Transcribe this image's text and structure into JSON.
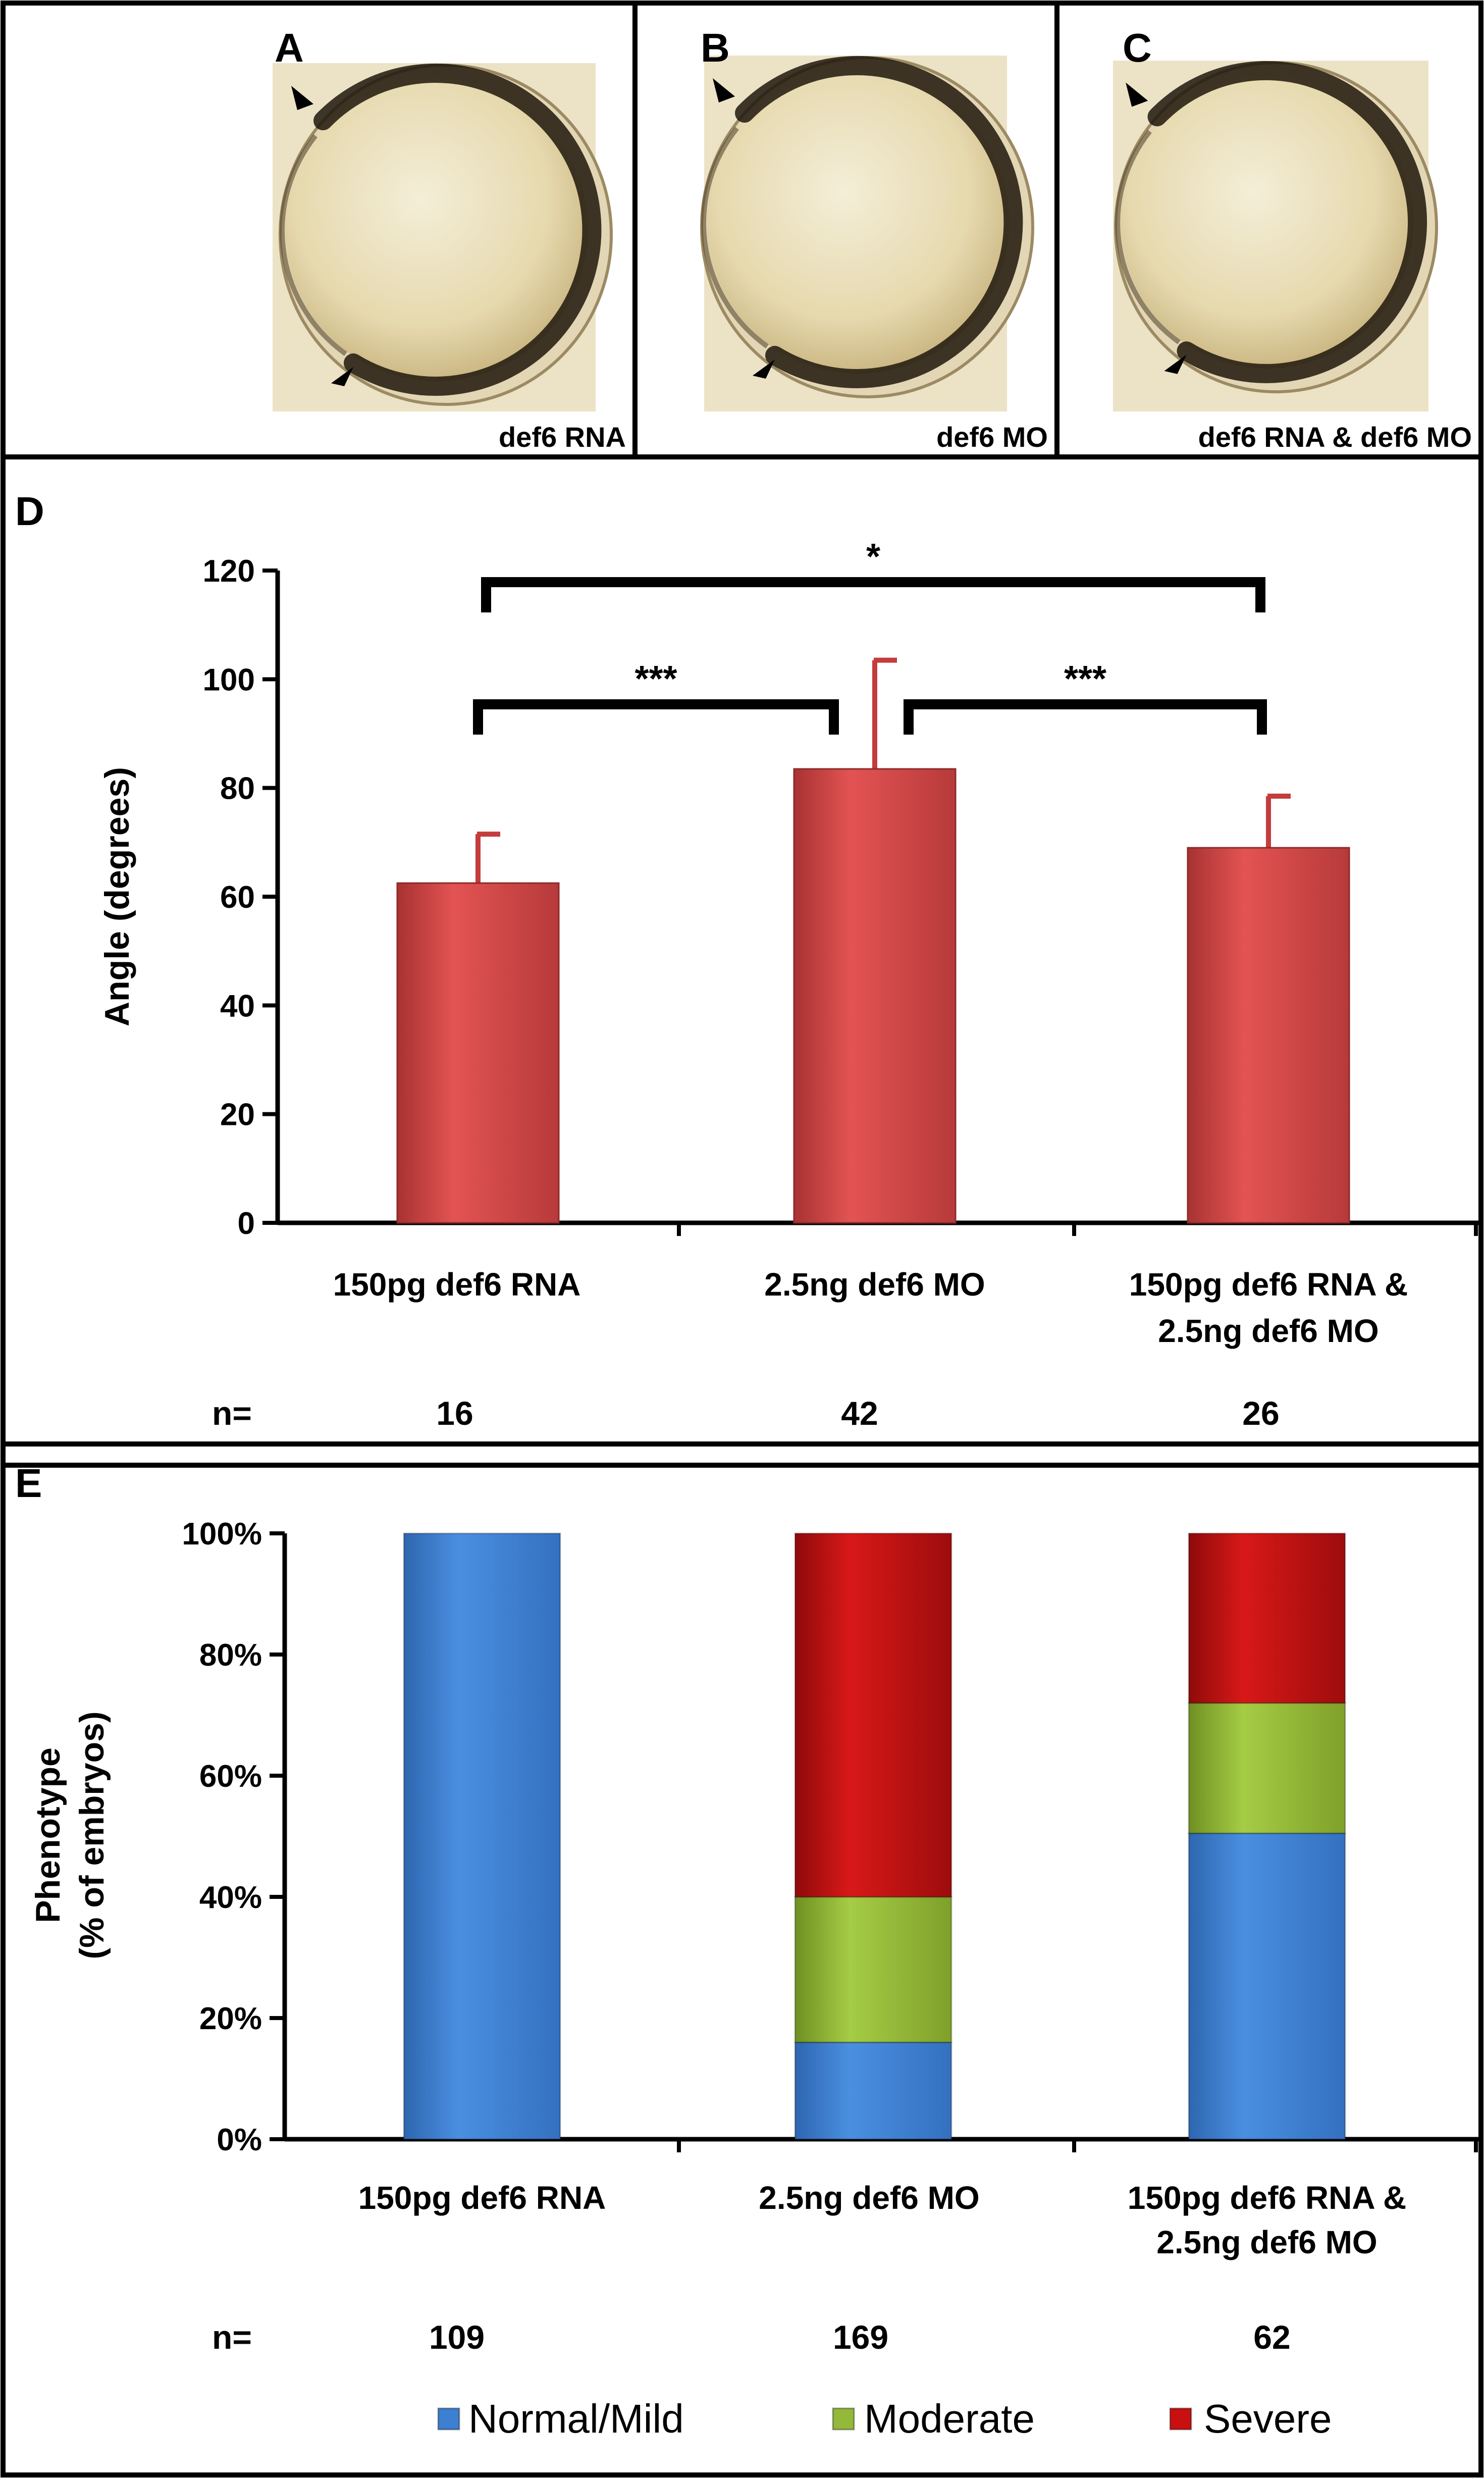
{
  "photo_panels": [
    {
      "letter": "A",
      "caption": "def6 RNA"
    },
    {
      "letter": "B",
      "caption": "def6 MO"
    },
    {
      "letter": "C",
      "caption": "def6 RNA & def6 MO"
    }
  ],
  "chart_data": [
    {
      "panel": "D",
      "type": "bar",
      "categories": [
        [
          "150pg def6 RNA"
        ],
        [
          "2.5ng  def6 MO"
        ],
        [
          "150pg def6 RNA &",
          "2.5ng  def6 MO"
        ]
      ],
      "values": [
        62.5,
        83.5,
        69
      ],
      "error": [
        9,
        20,
        9.5
      ],
      "ylabel": "Angle (degrees)",
      "ylim": [
        0,
        120
      ],
      "yticks": [
        0,
        20,
        40,
        60,
        80,
        100,
        120
      ],
      "bar_color": "#d94545",
      "n_label": "n=",
      "n_values": [
        "16",
        "42",
        "26"
      ],
      "significance": [
        {
          "from": 0,
          "to": 1,
          "label": "***"
        },
        {
          "from": 1,
          "to": 2,
          "label": "***"
        },
        {
          "from": 0,
          "to": 2,
          "label": "*"
        }
      ]
    },
    {
      "panel": "E",
      "type": "bar",
      "stacked": true,
      "categories": [
        [
          "150pg def6 RNA"
        ],
        [
          "2.5ng def6 MO"
        ],
        [
          "150pg def6 RNA &",
          "2.5ng def6 MO"
        ]
      ],
      "series": [
        {
          "name": "Normal/Mild",
          "values": [
            100,
            16,
            50.5
          ],
          "color": "#3d7fd1"
        },
        {
          "name": "Moderate",
          "values": [
            0,
            24,
            21.5
          ],
          "color": "#93b83a"
        },
        {
          "name": "Severe",
          "values": [
            0,
            60,
            28
          ],
          "color": "#c81010"
        }
      ],
      "ylabel": [
        "Phenotype",
        "(% of embryos)"
      ],
      "ylim": [
        0,
        100
      ],
      "yticks": [
        "0%",
        "20%",
        "40%",
        "60%",
        "80%",
        "100%"
      ],
      "n_label": "n=",
      "n_values": [
        "109",
        "169",
        "62"
      ],
      "legend_position": "bottom"
    }
  ]
}
